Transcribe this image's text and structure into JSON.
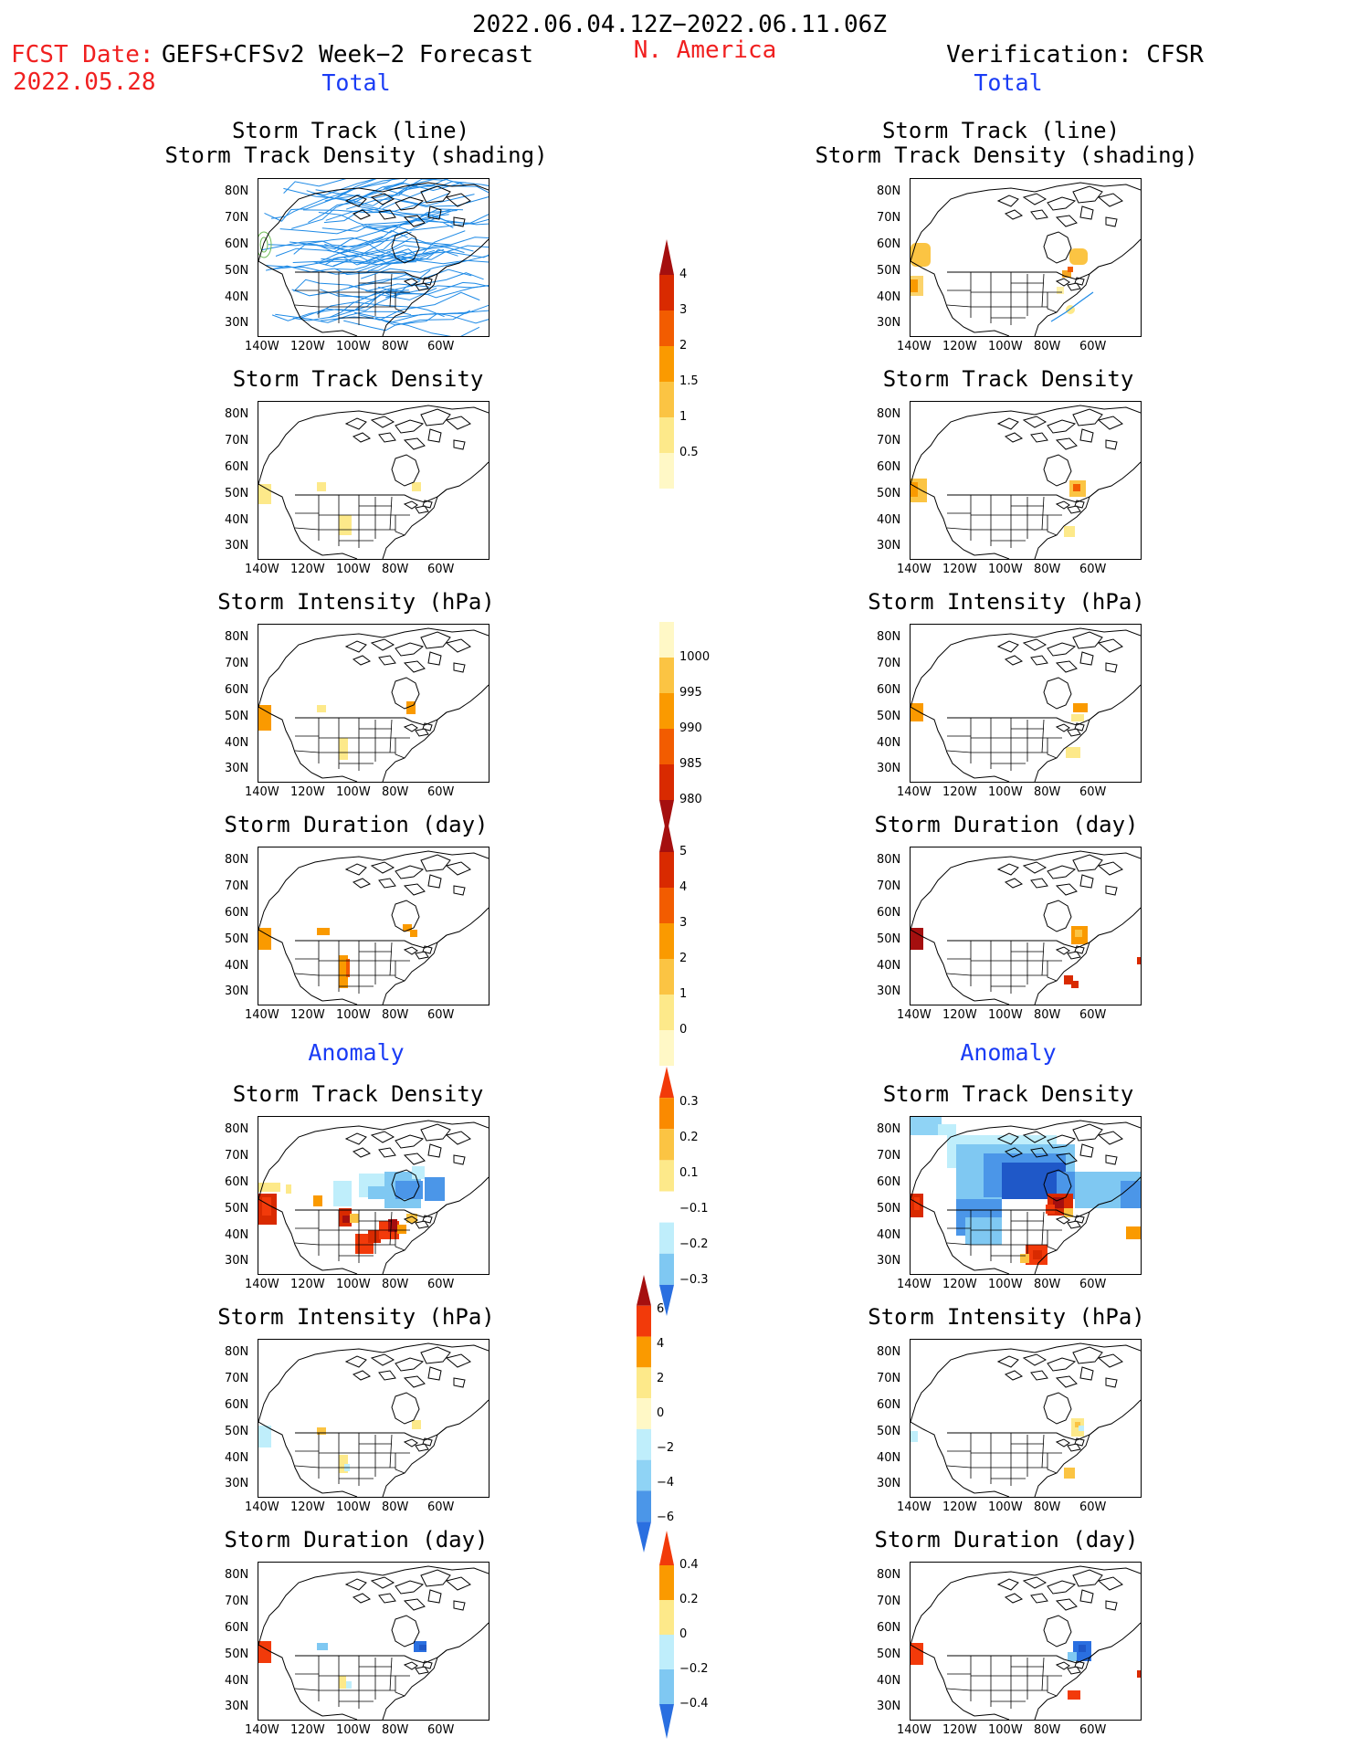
{
  "header": {
    "date_range": "2022.06.04.12Z−2022.06.11.06Z",
    "fcst_date_label": "FCST Date:",
    "fcst_date_value": "2022.05.28",
    "forecast_label": "GEFS+CFSv2 Week−2 Forecast",
    "region": "N. America",
    "verification": "Verification: CFSR"
  },
  "sections": {
    "total": "Total",
    "anomaly": "Anomaly"
  },
  "axes": {
    "lat_labels": [
      "80N",
      "70N",
      "60N",
      "50N",
      "40N",
      "30N"
    ],
    "lon_labels": [
      "140W",
      "120W",
      "100W",
      "80W",
      "60W"
    ]
  },
  "panels": {
    "storm_track_title_1": "Storm Track (line)",
    "storm_track_title_2": "Storm Track Density (shading)",
    "density": "Storm Track Density",
    "intensity": "Storm Intensity (hPa)",
    "duration": "Storm Duration (day)"
  },
  "colorbars": [
    {
      "id": "density",
      "labels": [
        "4",
        "3",
        "2",
        "1.5",
        "1",
        "0.5"
      ],
      "colors": [
        "#a50f0f",
        "#d92a00",
        "#f25c00",
        "#fa9a00",
        "#fbc443",
        "#fde98a",
        "#fff8c6"
      ],
      "top_arrow": true,
      "bottom_arrow": false
    },
    {
      "id": "intensity",
      "labels": [
        "1000",
        "995",
        "990",
        "985",
        "980"
      ],
      "colors": [
        "#fff8c6",
        "#fbc443",
        "#fa9a00",
        "#f25c00",
        "#d92a00",
        "#a50f0f"
      ],
      "top_arrow": false,
      "bottom_arrow": true
    },
    {
      "id": "duration",
      "labels": [
        "5",
        "4",
        "3",
        "2",
        "1",
        "0"
      ],
      "colors": [
        "#a50f0f",
        "#d92a00",
        "#f25c00",
        "#fa9a00",
        "#fbc443",
        "#fde98a",
        "#fff8c6"
      ],
      "top_arrow": true,
      "bottom_arrow": false
    },
    {
      "id": "anom_density",
      "labels": [
        "0.3",
        "0.2",
        "0.1",
        "−0.1",
        "−0.2",
        "−0.3"
      ],
      "colors": [
        "#f23a0a",
        "#fa8a00",
        "#fbc443",
        "#fde98a",
        "#ffffff",
        "#bfeefb",
        "#7fc8f2",
        "#2a6fe0"
      ],
      "top_arrow": true,
      "bottom_arrow": true
    },
    {
      "id": "anom_intensity",
      "labels": [
        "6",
        "4",
        "2",
        "0",
        "−2",
        "−4",
        "−6"
      ],
      "colors": [
        "#a50f0f",
        "#f23a0a",
        "#fa9a00",
        "#fde98a",
        "#fff8c6",
        "#bfeefb",
        "#8fd3f5",
        "#4b96e8",
        "#2a6fe0"
      ],
      "top_arrow": true,
      "bottom_arrow": true
    },
    {
      "id": "anom_duration",
      "labels": [
        "0.4",
        "0.2",
        "0",
        "−0.2",
        "−0.4"
      ],
      "colors": [
        "#f23a0a",
        "#fa9a00",
        "#fde98a",
        "#bfeefb",
        "#7fc8f2",
        "#2a6fe0"
      ],
      "top_arrow": true,
      "bottom_arrow": true
    }
  ],
  "colors": {
    "track_line": "#1e8ae6",
    "title_red": "#f02020",
    "section_blue": "#1a3cf5"
  }
}
